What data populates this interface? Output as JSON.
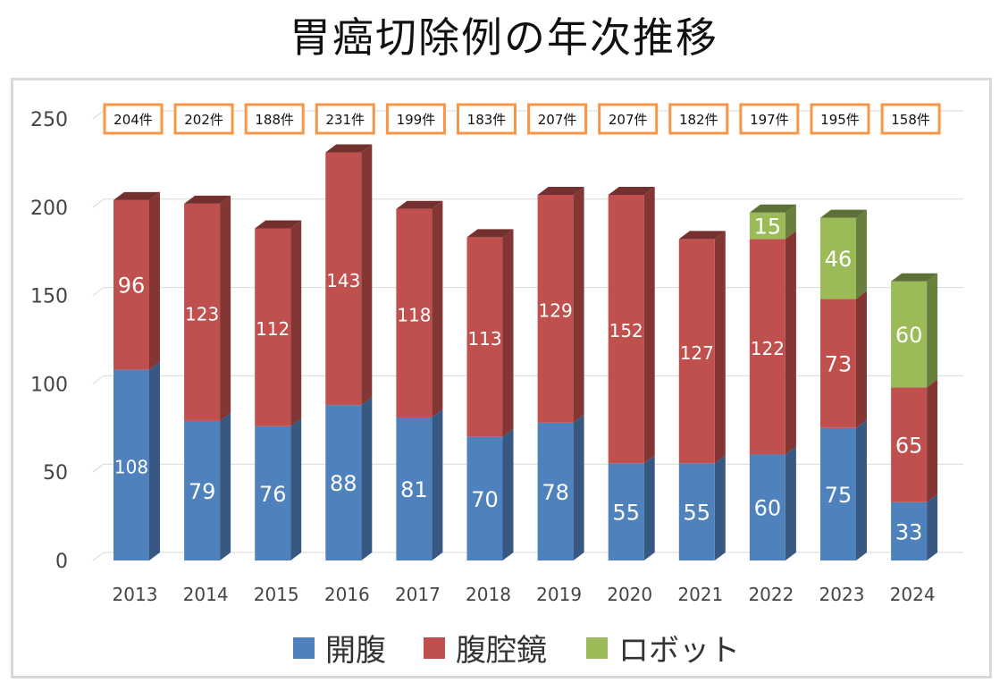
{
  "title": "胃癌切除例の年次推移",
  "colors": {
    "open": "#4f81bd",
    "lap": "#c0504d",
    "robot": "#9bbb59",
    "totalBox": "#f79646"
  },
  "legend": [
    {
      "name": "開腹",
      "color": "#4f81bd"
    },
    {
      "name": "腹腔鏡",
      "color": "#c0504d"
    },
    {
      "name": "ロボット",
      "color": "#9bbb59"
    }
  ],
  "chart_data": {
    "type": "bar",
    "stacked": true,
    "title": "胃癌切除例の年次推移",
    "categories": [
      "2013",
      "2014",
      "2015",
      "2016",
      "2017",
      "2018",
      "2019",
      "2020",
      "2021",
      "2022",
      "2023",
      "2024"
    ],
    "series": [
      {
        "name": "開腹",
        "values": [
          108,
          79,
          76,
          88,
          81,
          70,
          78,
          55,
          55,
          60,
          75,
          33
        ]
      },
      {
        "name": "腹腔鏡",
        "values": [
          96,
          123,
          112,
          143,
          118,
          113,
          129,
          152,
          127,
          122,
          73,
          65
        ]
      },
      {
        "name": "ロボット",
        "values": [
          0,
          0,
          0,
          0,
          0,
          0,
          0,
          0,
          0,
          15,
          46,
          60
        ]
      }
    ],
    "totals": [
      "204件",
      "202件",
      "188件",
      "231件",
      "199件",
      "183件",
      "207件",
      "207件",
      "182件",
      "197件",
      "195件",
      "158件"
    ],
    "ylim": [
      0,
      250
    ],
    "yticks": [
      0,
      50,
      100,
      150,
      200,
      250
    ],
    "grid": true,
    "legend_position": "bottom"
  }
}
